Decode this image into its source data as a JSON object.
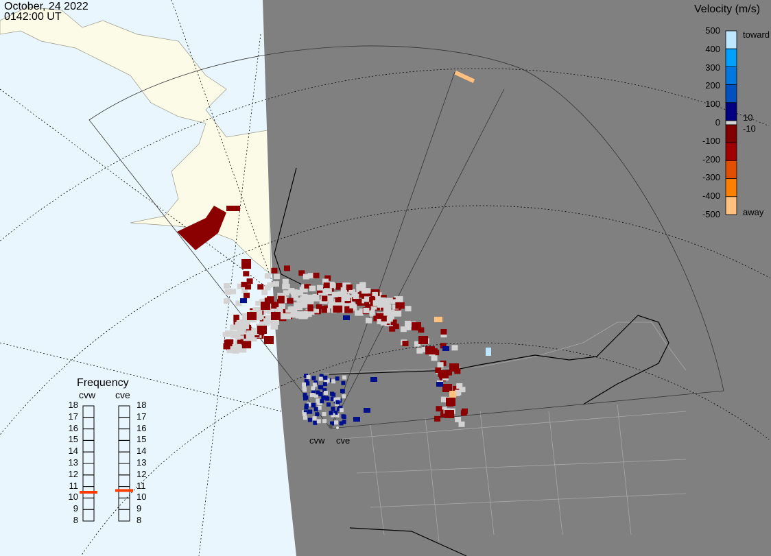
{
  "header": {
    "date": "October, 24 2022",
    "time": "0142:00 UT"
  },
  "radars": [
    {
      "code": "cvw"
    },
    {
      "code": "cve"
    }
  ],
  "colorbar": {
    "title": "Velocity (m/s)",
    "ticks": [
      "500",
      "400",
      "300",
      "200",
      "100",
      "0",
      "-100",
      "-200",
      "-300",
      "-400",
      "-500"
    ],
    "toward_label": "toward",
    "away_label": "away",
    "gs_upper": "10",
    "gs_lower": "-10",
    "colors": [
      "#bfe6ff",
      "#7ccaff",
      "#00a0ff",
      "#0078e0",
      "#0050c0",
      "#00309f",
      "#000080",
      "#d3d3d3",
      "#800000",
      "#a00000",
      "#c02800",
      "#e05000",
      "#ff8000",
      "#ffc080"
    ]
  },
  "frequency": {
    "title": "Frequency",
    "scale": [
      "18",
      "17",
      "16",
      "15",
      "14",
      "13",
      "12",
      "11",
      "10",
      "9",
      "8"
    ],
    "values_mhz": {
      "cvw": 10.5,
      "cve": 10.65
    },
    "marker_color": "#ff3b00"
  },
  "colors": {
    "ocean": "#eaf6fd",
    "land_day": "#fbfbe8",
    "night": "#808080",
    "ground_scatter": "#d3d3d3"
  }
}
